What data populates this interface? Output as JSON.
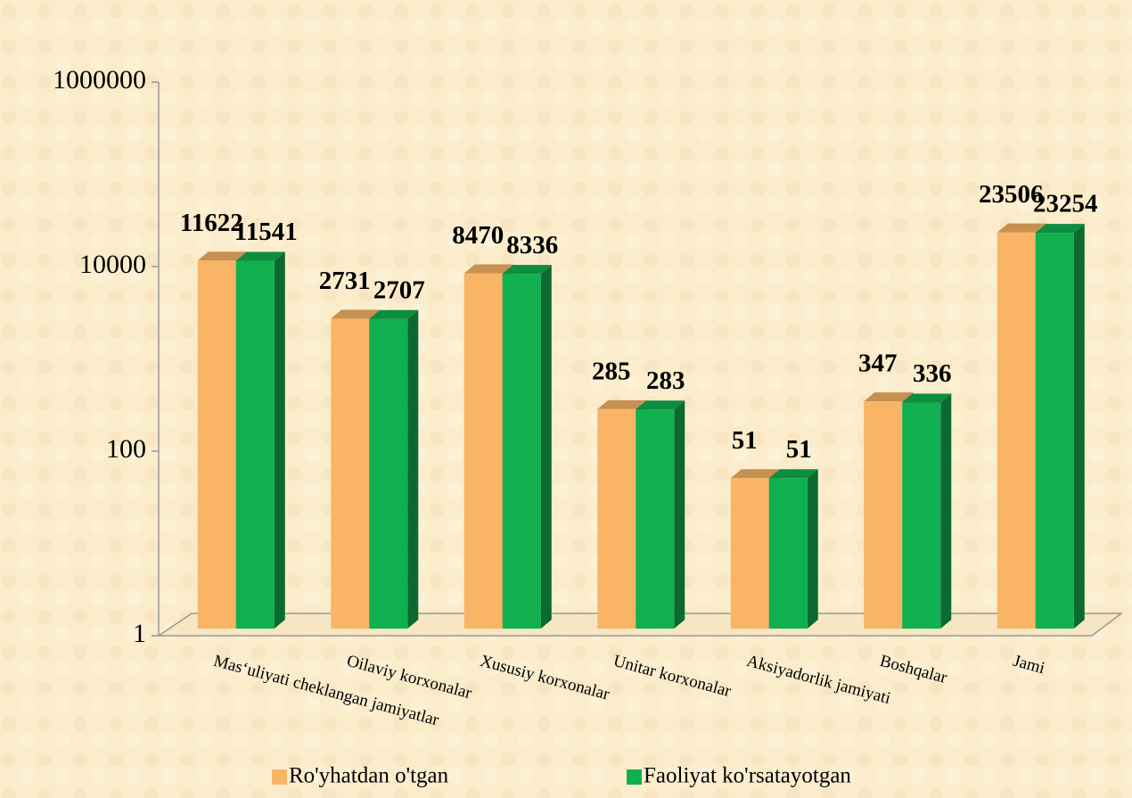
{
  "chart_data": {
    "type": "bar3d",
    "categories": [
      "Mas‘uliyati cheklangan jamiyatlar",
      "Oilaviy korxonalar",
      "Xususiy korxonalar",
      "Unitar korxonalar",
      "Aksiyadorlik jamiyati",
      "Boshqalar",
      "Jami"
    ],
    "series": [
      {
        "name": "Ro'yhatdan o'tgan",
        "color": "#f9b565",
        "values": [
          11622,
          2731,
          8470,
          285,
          51,
          347,
          23506
        ]
      },
      {
        "name": "Faoliyat ko'rsatayotgan",
        "color": "#10b050",
        "values": [
          11541,
          2707,
          8336,
          283,
          51,
          336,
          23254
        ]
      }
    ],
    "log_scale": true,
    "ylim": [
      1,
      1000000
    ],
    "yticks": [
      1,
      100,
      10000,
      1000000
    ]
  }
}
